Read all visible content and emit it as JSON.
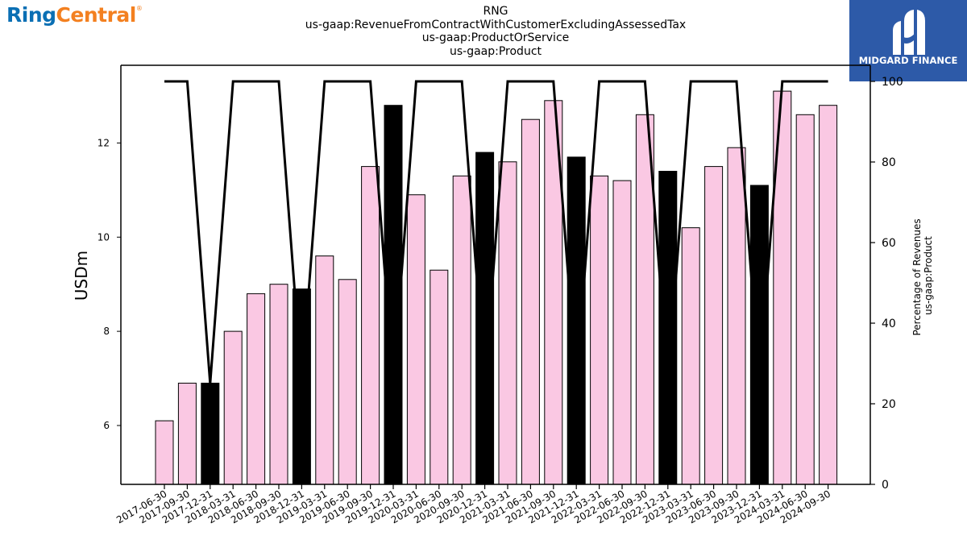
{
  "logos": {
    "left_part1": "Ring",
    "left_part2": "Central",
    "left_mark": "®",
    "right_text": "MIDGARD FINANCE",
    "right_bg": "#2d5aa8"
  },
  "chart_data": {
    "type": "bar",
    "title_lines": [
      "RNG",
      "us-gaap:RevenueFromContractWithCustomerExcludingAssessedTax",
      "us-gaap:ProductOrService",
      "us-gaap:Product"
    ],
    "ylabel": "USDm",
    "y2label_lines": [
      "Percentage of Revenues",
      "us-gaap:Product"
    ],
    "ylim": [
      4.75,
      13.65
    ],
    "y2lim": [
      0,
      104
    ],
    "y_ticks": [
      6,
      8,
      10,
      12
    ],
    "y2_ticks": [
      0,
      20,
      40,
      60,
      80,
      100
    ],
    "grid": false,
    "colors": {
      "bar_default": "#fac8e3",
      "bar_highlight": "#000000",
      "line": "#000000"
    },
    "categories": [
      "2017-06-30",
      "2017-09-30",
      "2017-12-31",
      "2018-03-31",
      "2018-06-30",
      "2018-09-30",
      "2018-12-31",
      "2019-03-31",
      "2019-06-30",
      "2019-09-30",
      "2019-12-31",
      "2020-03-31",
      "2020-06-30",
      "2020-09-30",
      "2020-12-31",
      "2021-03-31",
      "2021-06-30",
      "2021-09-30",
      "2021-12-31",
      "2022-03-31",
      "2022-06-30",
      "2022-09-30",
      "2022-12-31",
      "2023-03-31",
      "2023-06-30",
      "2023-09-30",
      "2023-12-31",
      "2024-03-31",
      "2024-06-30",
      "2024-09-30"
    ],
    "values": [
      6.1,
      6.9,
      6.9,
      8.0,
      8.8,
      9.0,
      8.9,
      9.6,
      9.1,
      11.5,
      12.8,
      10.9,
      9.3,
      11.3,
      11.8,
      11.6,
      12.5,
      12.9,
      11.7,
      11.3,
      11.2,
      12.6,
      11.4,
      10.2,
      11.5,
      11.9,
      11.1,
      13.1,
      12.6,
      12.8
    ],
    "highlighted": [
      false,
      false,
      true,
      false,
      false,
      false,
      true,
      false,
      false,
      false,
      true,
      false,
      false,
      false,
      true,
      false,
      false,
      false,
      true,
      false,
      false,
      false,
      true,
      false,
      false,
      false,
      true,
      false,
      false,
      false
    ],
    "percentage": [
      100,
      100,
      25,
      100,
      100,
      100,
      25,
      100,
      100,
      100,
      25,
      100,
      100,
      100,
      25,
      100,
      100,
      100,
      25,
      100,
      100,
      100,
      25,
      100,
      100,
      100,
      25,
      100,
      100,
      100
    ]
  }
}
